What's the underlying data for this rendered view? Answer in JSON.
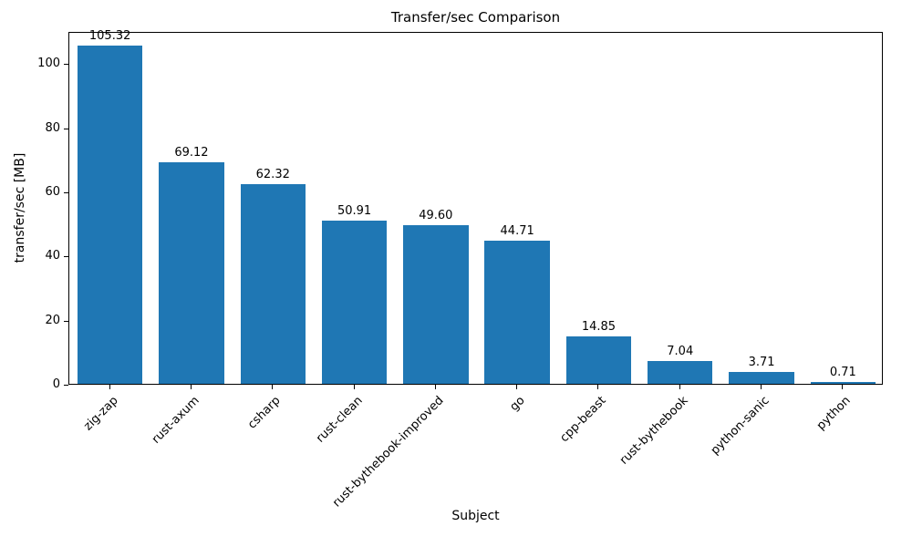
{
  "chart_data": {
    "type": "bar",
    "title": "Transfer/sec Comparison",
    "xlabel": "Subject",
    "ylabel": "transfer/sec [MB]",
    "categories": [
      "zig-zap",
      "rust-axum",
      "csharp",
      "rust-clean",
      "rust-bythebook-improved",
      "go",
      "cpp-beast",
      "rust-bythebook",
      "python-sanic",
      "python"
    ],
    "values": [
      105.32,
      69.12,
      62.32,
      50.91,
      49.6,
      44.71,
      14.85,
      7.04,
      3.71,
      0.71
    ],
    "value_labels": [
      "105.32",
      "69.12",
      "62.32",
      "50.91",
      "49.60",
      "44.71",
      "14.85",
      "7.04",
      "3.71",
      "0.71"
    ],
    "yticks": [
      0,
      20,
      40,
      60,
      80,
      100
    ],
    "ylim": [
      0,
      110
    ],
    "bar_color": "#1f77b4",
    "background": "#ffffff",
    "grid": false,
    "legend": false
  }
}
